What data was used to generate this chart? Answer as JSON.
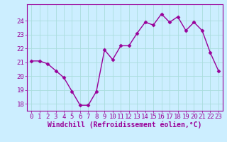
{
  "x": [
    0,
    1,
    2,
    3,
    4,
    5,
    6,
    7,
    8,
    9,
    10,
    11,
    12,
    13,
    14,
    15,
    16,
    17,
    18,
    19,
    20,
    21,
    22,
    23
  ],
  "y": [
    21.1,
    21.1,
    20.9,
    20.4,
    19.9,
    18.9,
    17.9,
    17.9,
    18.9,
    21.9,
    21.2,
    22.2,
    22.2,
    23.1,
    23.9,
    23.7,
    24.5,
    23.9,
    24.3,
    23.3,
    23.9,
    23.3,
    21.7,
    20.4
  ],
  "line_color": "#990099",
  "marker": "D",
  "marker_size": 2.5,
  "bg_color": "#cceeff",
  "grid_color": "#aadddd",
  "xlabel": "Windchill (Refroidissement éolien,°C)",
  "ylim": [
    17.5,
    25.2
  ],
  "yticks": [
    18,
    19,
    20,
    21,
    22,
    23,
    24
  ],
  "xticks": [
    0,
    1,
    2,
    3,
    4,
    5,
    6,
    7,
    8,
    9,
    10,
    11,
    12,
    13,
    14,
    15,
    16,
    17,
    18,
    19,
    20,
    21,
    22,
    23
  ],
  "tick_color": "#990099",
  "label_color": "#990099",
  "axis_color": "#990099",
  "font_size": 6.5,
  "xlabel_fontsize": 7.0,
  "linewidth": 1.0
}
